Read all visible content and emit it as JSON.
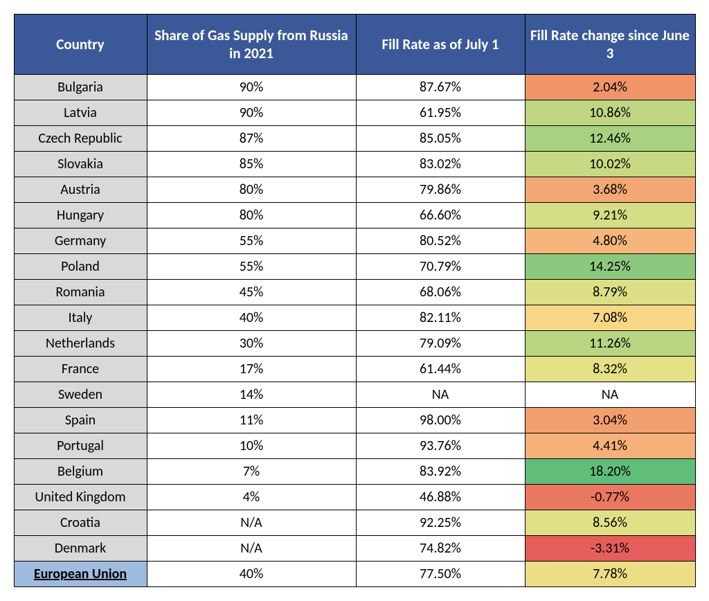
{
  "colors": {
    "header_bg": "#3b5998",
    "header_text": "#ffffff",
    "country_bg": "#d9d9d9",
    "eu_bg": "#9fbce0",
    "border": "#000000",
    "na_bg": "#ffffff"
  },
  "columns": [
    "Country",
    "Share of Gas Supply from Russia in 2021",
    "Fill Rate as of July 1",
    "Fill Rate change since June 3"
  ],
  "rows": [
    {
      "country": "Bulgaria",
      "share": "90%",
      "fill": "87.67%",
      "change": "2.04%",
      "change_bg": "#f0956a"
    },
    {
      "country": "Latvia",
      "share": "90%",
      "fill": "61.95%",
      "change": "10.86%",
      "change_bg": "#bed683"
    },
    {
      "country": "Czech Republic",
      "share": "87%",
      "fill": "85.05%",
      "change": "12.46%",
      "change_bg": "#a8d181"
    },
    {
      "country": "Slovakia",
      "share": "85%",
      "fill": "83.02%",
      "change": "10.02%",
      "change_bg": "#c8d984"
    },
    {
      "country": "Austria",
      "share": "80%",
      "fill": "79.86%",
      "change": "3.68%",
      "change_bg": "#f3a774"
    },
    {
      "country": "Hungary",
      "share": "80%",
      "fill": "66.60%",
      "change": "9.21%",
      "change_bg": "#d5dd85"
    },
    {
      "country": "Germany",
      "share": "55%",
      "fill": "80.52%",
      "change": "4.80%",
      "change_bg": "#f6b67b"
    },
    {
      "country": "Poland",
      "share": "55%",
      "fill": "70.79%",
      "change": "14.25%",
      "change_bg": "#8cc97e"
    },
    {
      "country": "Romania",
      "share": "45%",
      "fill": "68.06%",
      "change": "8.79%",
      "change_bg": "#dcdf86"
    },
    {
      "country": "Italy",
      "share": "40%",
      "fill": "82.11%",
      "change": "7.08%",
      "change_bg": "#f7d686"
    },
    {
      "country": "Netherlands",
      "share": "30%",
      "fill": "79.09%",
      "change": "11.26%",
      "change_bg": "#b8d582"
    },
    {
      "country": "France",
      "share": "17%",
      "fill": "61.44%",
      "change": "8.32%",
      "change_bg": "#e4e186"
    },
    {
      "country": "Sweden",
      "share": "14%",
      "fill": "NA",
      "change": "NA",
      "change_bg": "#ffffff"
    },
    {
      "country": "Spain",
      "share": "11%",
      "fill": "98.00%",
      "change": "3.04%",
      "change_bg": "#f29f70"
    },
    {
      "country": "Portugal",
      "share": "10%",
      "fill": "93.76%",
      "change": "4.41%",
      "change_bg": "#f5b179"
    },
    {
      "country": "Belgium",
      "share": "7%",
      "fill": "83.92%",
      "change": "18.20%",
      "change_bg": "#60bd7a"
    },
    {
      "country": "United Kingdom",
      "share": "4%",
      "fill": "46.88%",
      "change": "-0.77%",
      "change_bg": "#ea7761"
    },
    {
      "country": "Croatia",
      "share": "N/A",
      "fill": "92.25%",
      "change": "8.56%",
      "change_bg": "#e0e086"
    },
    {
      "country": "Denmark",
      "share": "N/A",
      "fill": "74.82%",
      "change": "-3.31%",
      "change_bg": "#e55e5b"
    }
  ],
  "summary": {
    "label": "European Union ",
    "share": "40%",
    "fill": "77.50%",
    "change": "7.78%",
    "change_bg": "#edde86"
  }
}
